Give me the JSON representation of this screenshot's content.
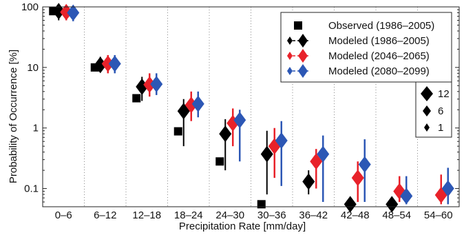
{
  "chart_data": {
    "type": "scatter",
    "xlabel": "Precipitation Rate [mm/day]",
    "ylabel": "Probability of Occurrence [%]",
    "yscale": "log",
    "ylim": [
      0.05,
      100
    ],
    "yticks": [
      0.1,
      1,
      10,
      100
    ],
    "ytick_labels": [
      "0.1",
      "1",
      "10",
      "100"
    ],
    "grid": "vertical dotted between bins",
    "legend_position": "top-right",
    "categories": [
      "0–6",
      "6–12",
      "12–18",
      "18–24",
      "24–30",
      "30–36",
      "36–42",
      "42–48",
      "48–54",
      "54–60"
    ],
    "series": [
      {
        "name": "Observed (1986–2005)",
        "color": "#000000",
        "marker": "square",
        "values": [
          85,
          10,
          3.1,
          0.88,
          0.28,
          0.055,
          null,
          null,
          null,
          null
        ]
      },
      {
        "name": "Modeled (1986–2005)",
        "color": "#000000",
        "marker": "diamond",
        "values": [
          85,
          11,
          4.8,
          1.9,
          0.8,
          0.37,
          0.13,
          0.055,
          0.055,
          null
        ],
        "err_low": [
          60,
          9,
          2.8,
          0.5,
          0.2,
          0.08,
          0.08,
          null,
          null,
          null
        ],
        "err_high": [
          100,
          15,
          7,
          3,
          1.4,
          0.9,
          0.2,
          null,
          null,
          null
        ]
      },
      {
        "name": "Modeled (2046–2065)",
        "color": "#e8222a",
        "marker": "diamond",
        "values": [
          82,
          11.5,
          5.2,
          2.4,
          1.2,
          0.5,
          0.28,
          0.15,
          0.09,
          0.078
        ],
        "err_low": [
          60,
          8,
          3.3,
          1.3,
          0.5,
          0.15,
          0.1,
          0.06,
          0.06,
          0.055
        ],
        "err_high": [
          100,
          16,
          8,
          4,
          2.1,
          1.0,
          0.45,
          0.28,
          0.16,
          0.17
        ]
      },
      {
        "name": "Modeled (2080–2099)",
        "color": "#2c57b5",
        "marker": "diamond",
        "values": [
          80,
          11.5,
          5.3,
          2.5,
          1.35,
          0.62,
          0.37,
          0.25,
          0.075,
          0.1
        ],
        "err_low": [
          58,
          8,
          3.5,
          1.5,
          0.28,
          0.11,
          0.06,
          0.06,
          0.055,
          0.055
        ],
        "err_high": [
          100,
          16,
          8,
          4,
          2.0,
          1.3,
          0.75,
          0.65,
          0.16,
          0.22
        ]
      }
    ],
    "size_legend": [
      {
        "label": "12",
        "size": 12
      },
      {
        "label": "6",
        "size": 6
      },
      {
        "label": "1",
        "size": 1
      }
    ]
  }
}
